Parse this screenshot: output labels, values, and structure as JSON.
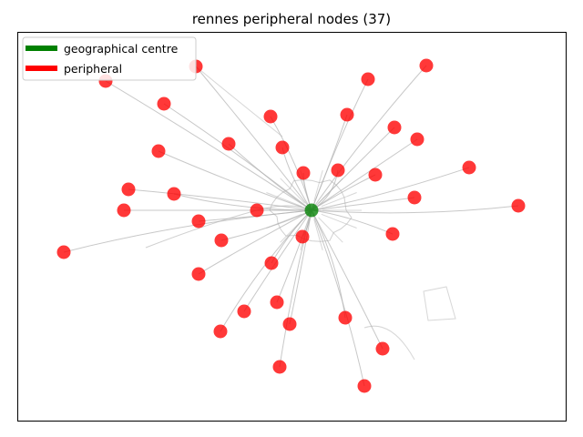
{
  "chart_data": {
    "type": "scatter",
    "title": "rennes peripheral nodes (37)",
    "xlabel": "",
    "ylabel": "",
    "axes_visible": false,
    "grid": false,
    "legend_position": "top-left",
    "legend": [
      {
        "label": "geographical centre",
        "color": "#008000"
      },
      {
        "label": "peripheral",
        "color": "#ff0000"
      }
    ],
    "edge_color": "#b0b0b0",
    "series": [
      {
        "name": "geographical centre",
        "color": "#008000",
        "points": [
          [
            342,
            231
          ]
        ]
      },
      {
        "name": "peripheral",
        "color": "#ff0000",
        "points": [
          [
            116,
            89
          ],
          [
            215,
            73
          ],
          [
            180,
            114
          ],
          [
            297,
            128
          ],
          [
            404,
            87
          ],
          [
            468,
            72
          ],
          [
            381,
            126
          ],
          [
            433,
            140
          ],
          [
            458,
            153
          ],
          [
            251,
            158
          ],
          [
            310,
            162
          ],
          [
            174,
            166
          ],
          [
            333,
            190
          ],
          [
            371,
            187
          ],
          [
            412,
            192
          ],
          [
            515,
            184
          ],
          [
            141,
            208
          ],
          [
            191,
            213
          ],
          [
            455,
            217
          ],
          [
            569,
            226
          ],
          [
            136,
            231
          ],
          [
            282,
            231
          ],
          [
            218,
            243
          ],
          [
            70,
            277
          ],
          [
            332,
            260
          ],
          [
            431,
            257
          ],
          [
            243,
            264
          ],
          [
            298,
            289
          ],
          [
            218,
            301
          ],
          [
            304,
            332
          ],
          [
            268,
            342
          ],
          [
            379,
            349
          ],
          [
            318,
            356
          ],
          [
            242,
            364
          ],
          [
            420,
            383
          ],
          [
            307,
            403
          ],
          [
            400,
            424
          ]
        ]
      }
    ]
  }
}
